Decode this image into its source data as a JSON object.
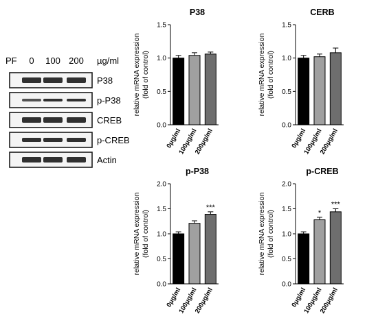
{
  "blot": {
    "pf_label": "PF",
    "doses": [
      "0",
      "100",
      "200"
    ],
    "unit": "µg/ml",
    "bands": [
      "P38",
      "p-P38",
      "CREB",
      "p-CREB",
      "Actin"
    ]
  },
  "colors": {
    "bar_fills": [
      "#000000",
      "#a0a0a0",
      "#6e6e6e"
    ],
    "axis": "#000000"
  },
  "chart_data": [
    {
      "type": "bar",
      "title": "P38",
      "categories": [
        "0μg/ml",
        "100μg/ml",
        "200μg/ml"
      ],
      "values": [
        1.0,
        1.04,
        1.06
      ],
      "errors": [
        0.04,
        0.04,
        0.03
      ],
      "significance": [
        "",
        "",
        ""
      ],
      "ylabel": [
        "relative mRNA expression",
        "(fold of control)"
      ],
      "ylim": [
        0,
        1.5
      ],
      "yticks": [
        "0.0",
        "0.5",
        "1.0",
        "1.5"
      ]
    },
    {
      "type": "bar",
      "title": "CERB",
      "categories": [
        "0μg/ml",
        "100μg/ml",
        "200μg/ml"
      ],
      "values": [
        1.0,
        1.02,
        1.08
      ],
      "errors": [
        0.04,
        0.04,
        0.07
      ],
      "significance": [
        "",
        "",
        ""
      ],
      "ylabel": [
        "relative mRNA expression",
        "(fold of control)"
      ],
      "ylim": [
        0,
        1.5
      ],
      "yticks": [
        "0.0",
        "0.5",
        "1.0",
        "1.5"
      ]
    },
    {
      "type": "bar",
      "title": "p-P38",
      "categories": [
        "0μg/ml",
        "100μg/ml",
        "200μg/ml"
      ],
      "values": [
        1.0,
        1.21,
        1.39
      ],
      "errors": [
        0.04,
        0.05,
        0.05
      ],
      "significance": [
        "",
        "",
        "***"
      ],
      "ylabel": [
        "relative mRNA expression",
        "(fold of control)"
      ],
      "ylim": [
        0,
        2.0
      ],
      "yticks": [
        "0.0",
        "0.5",
        "1.0",
        "1.5",
        "2.0"
      ]
    },
    {
      "type": "bar",
      "title": "p-CREB",
      "categories": [
        "0μg/ml",
        "100μg/ml",
        "200μg/ml"
      ],
      "values": [
        1.0,
        1.28,
        1.44
      ],
      "errors": [
        0.04,
        0.05,
        0.06
      ],
      "significance": [
        "",
        "*",
        "***"
      ],
      "ylabel": [
        "relative mRNA expression",
        "(fold of control)"
      ],
      "ylim": [
        0,
        2.0
      ],
      "yticks": [
        "0.0",
        "0.5",
        "1.0",
        "1.5",
        "2.0"
      ]
    }
  ]
}
